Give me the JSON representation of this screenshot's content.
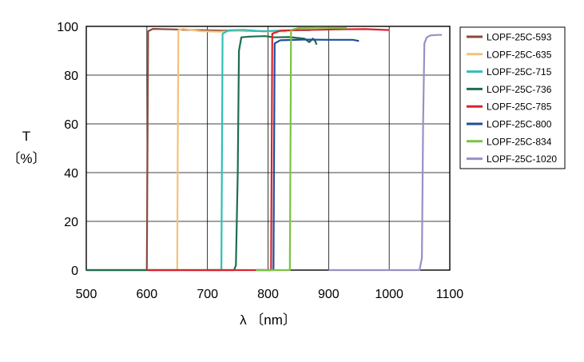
{
  "chart_data": {
    "type": "line",
    "title": "",
    "xlabel": "λ 〔nm〕",
    "ylabel_lines": [
      "T",
      "〔%〕"
    ],
    "xlim": [
      500,
      1100
    ],
    "ylim": [
      0,
      100
    ],
    "xticks": [
      500,
      600,
      700,
      800,
      900,
      1000,
      1100
    ],
    "yticks": [
      0,
      20,
      40,
      60,
      80,
      100
    ],
    "grid": true,
    "legend_position": "right",
    "series": [
      {
        "name": "LOPF-25C-593",
        "color": "#8b4a3a",
        "points": [
          [
            500,
            0
          ],
          [
            598,
            0
          ],
          [
            600,
            0
          ],
          [
            601,
            50
          ],
          [
            602,
            98
          ],
          [
            610,
            99
          ],
          [
            640,
            98.8
          ],
          [
            680,
            98.5
          ],
          [
            720,
            98.3
          ],
          [
            760,
            98.2
          ],
          [
            800,
            98
          ]
        ]
      },
      {
        "name": "LOPF-25C-635",
        "color": "#f5c27a",
        "points": [
          [
            600,
            0
          ],
          [
            648,
            0
          ],
          [
            650,
            0
          ],
          [
            651,
            50
          ],
          [
            652,
            98.5
          ],
          [
            660,
            99
          ],
          [
            690,
            98
          ],
          [
            720,
            97.8
          ],
          [
            760,
            98.3
          ],
          [
            800,
            98
          ],
          [
            830,
            97.9
          ]
        ]
      },
      {
        "name": "LOPF-25C-715",
        "color": "#2fbfb4",
        "points": [
          [
            700,
            0
          ],
          [
            722,
            0
          ],
          [
            723,
            0
          ],
          [
            724,
            50
          ],
          [
            725,
            97
          ],
          [
            735,
            98.4
          ],
          [
            760,
            98.6
          ],
          [
            790,
            98
          ],
          [
            820,
            98.3
          ],
          [
            850,
            98.5
          ],
          [
            870,
            98.4
          ]
        ]
      },
      {
        "name": "LOPF-25C-736",
        "color": "#1e6e4e",
        "points": [
          [
            500,
            0
          ],
          [
            730,
            0
          ],
          [
            744,
            0
          ],
          [
            747,
            2
          ],
          [
            750,
            40
          ],
          [
            752,
            90
          ],
          [
            756,
            95.5
          ],
          [
            770,
            95.8
          ],
          [
            795,
            96
          ],
          [
            810,
            95.5
          ],
          [
            835,
            95.6
          ],
          [
            860,
            95
          ],
          [
            868,
            93.5
          ],
          [
            874,
            95
          ],
          [
            878,
            94
          ],
          [
            880,
            92.5
          ]
        ]
      },
      {
        "name": "LOPF-25C-785",
        "color": "#d9232e",
        "points": [
          [
            600,
            0
          ],
          [
            630,
            0
          ],
          [
            650,
            0
          ],
          [
            700,
            0
          ],
          [
            740,
            0
          ],
          [
            803,
            0
          ],
          [
            805,
            0
          ],
          [
            806,
            50
          ],
          [
            807,
            97
          ],
          [
            820,
            98.2
          ],
          [
            850,
            98.5
          ],
          [
            880,
            98.6
          ],
          [
            920,
            98.8
          ],
          [
            960,
            98.9
          ],
          [
            1000,
            98.5
          ]
        ]
      },
      {
        "name": "LOPF-25C-800",
        "color": "#1f4e9a",
        "points": [
          [
            780,
            0
          ],
          [
            807,
            0
          ],
          [
            809,
            0
          ],
          [
            810,
            50
          ],
          [
            811,
            93
          ],
          [
            820,
            94.3
          ],
          [
            860,
            94.6
          ],
          [
            900,
            94.5
          ],
          [
            940,
            94.5
          ],
          [
            950,
            94
          ]
        ]
      },
      {
        "name": "LOPF-25C-834",
        "color": "#7cc242",
        "points": [
          [
            780,
            0
          ],
          [
            834,
            0
          ],
          [
            836,
            0
          ],
          [
            837,
            50
          ],
          [
            838,
            98.5
          ],
          [
            850,
            99.3
          ],
          [
            880,
            99.5
          ],
          [
            910,
            99.4
          ],
          [
            930,
            99.3
          ]
        ]
      },
      {
        "name": "LOPF-25C-1020",
        "color": "#9a8fc6",
        "points": [
          [
            900,
            0
          ],
          [
            1050,
            0
          ],
          [
            1054,
            5
          ],
          [
            1056,
            60
          ],
          [
            1058,
            93
          ],
          [
            1062,
            95.5
          ],
          [
            1068,
            96.3
          ],
          [
            1080,
            96.5
          ],
          [
            1087,
            96.5
          ]
        ]
      }
    ]
  }
}
